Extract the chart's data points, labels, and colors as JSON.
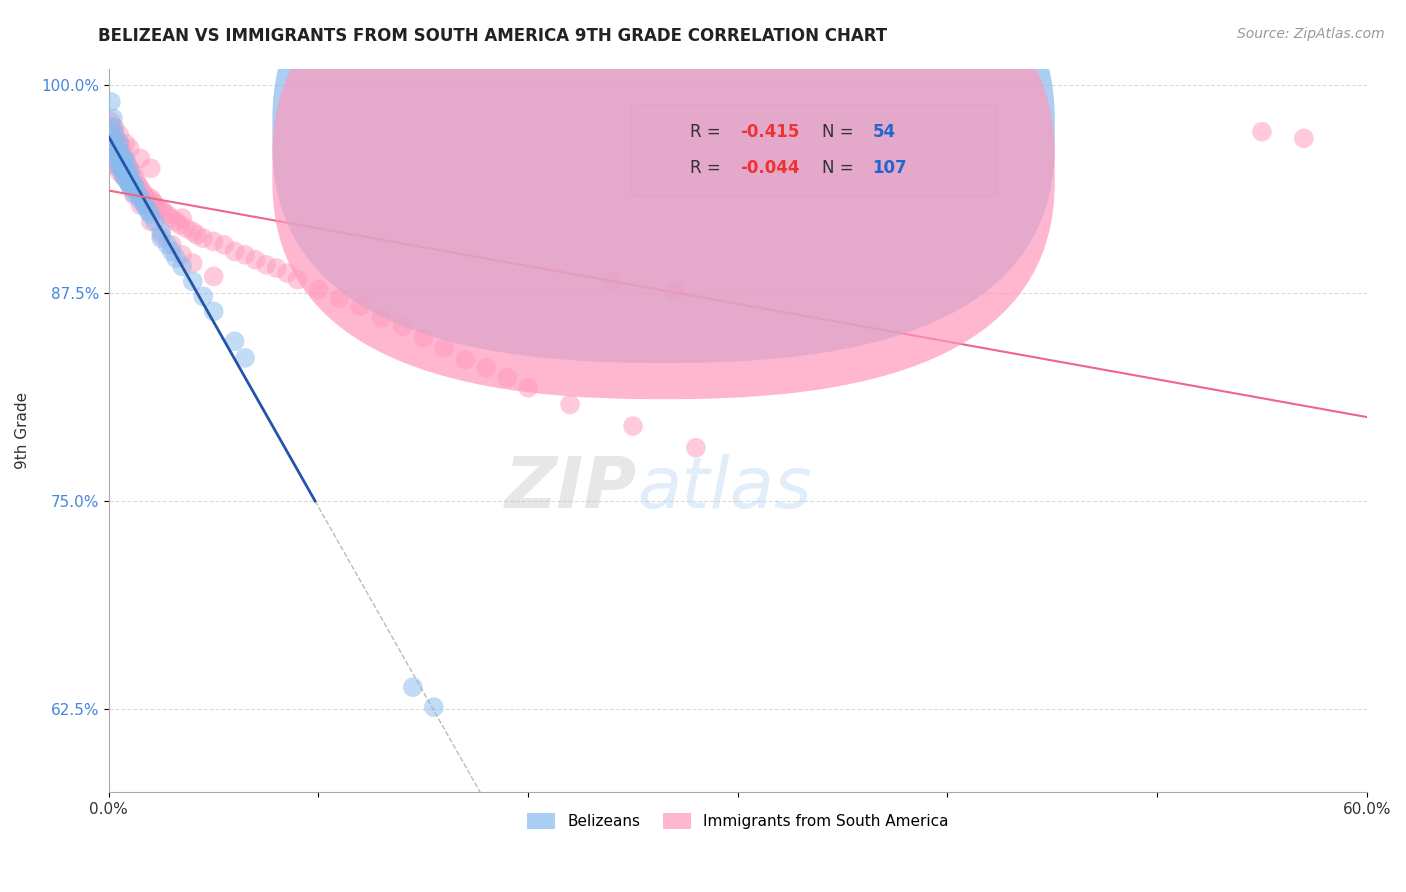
{
  "title": "BELIZEAN VS IMMIGRANTS FROM SOUTH AMERICA 9TH GRADE CORRELATION CHART",
  "source_text": "Source: ZipAtlas.com",
  "xlabel_blue": "Belizeans",
  "xlabel_pink": "Immigrants from South America",
  "ylabel": "9th Grade",
  "xlim": [
    0.0,
    0.6
  ],
  "ylim": [
    0.575,
    1.01
  ],
  "xticks": [
    0.0,
    0.1,
    0.2,
    0.3,
    0.4,
    0.5,
    0.6
  ],
  "xticklabels": [
    "0.0%",
    "",
    "",
    "",
    "",
    "",
    "60.0%"
  ],
  "yticks": [
    0.625,
    0.75,
    0.875,
    1.0
  ],
  "yticklabels": [
    "62.5%",
    "75.0%",
    "87.5%",
    "100.0%"
  ],
  "r_blue": -0.415,
  "n_blue": 54,
  "r_pink": -0.044,
  "n_pink": 107,
  "blue_color": "#88BBEE",
  "pink_color": "#FF99BB",
  "blue_line_color": "#2255AA",
  "pink_line_color": "#EE6688",
  "background_color": "#FFFFFF",
  "grid_color": "#CCCCCC",
  "watermark_zip": "ZIP",
  "watermark_atlas": "atlas",
  "blue_x": [
    0.001,
    0.002,
    0.002,
    0.003,
    0.003,
    0.003,
    0.004,
    0.004,
    0.005,
    0.005,
    0.005,
    0.005,
    0.006,
    0.006,
    0.006,
    0.007,
    0.007,
    0.007,
    0.008,
    0.008,
    0.008,
    0.009,
    0.009,
    0.01,
    0.01,
    0.01,
    0.011,
    0.011,
    0.012,
    0.012,
    0.013,
    0.014,
    0.015,
    0.016,
    0.017,
    0.018,
    0.019,
    0.02,
    0.022,
    0.025,
    0.025,
    0.028,
    0.03,
    0.032,
    0.035,
    0.04,
    0.045,
    0.05,
    0.06,
    0.065,
    0.001,
    0.002,
    0.145,
    0.155
  ],
  "blue_y": [
    0.97,
    0.975,
    0.965,
    0.97,
    0.96,
    0.955,
    0.965,
    0.96,
    0.965,
    0.96,
    0.955,
    0.95,
    0.958,
    0.955,
    0.95,
    0.955,
    0.95,
    0.945,
    0.955,
    0.95,
    0.945,
    0.948,
    0.942,
    0.948,
    0.944,
    0.94,
    0.942,
    0.938,
    0.94,
    0.935,
    0.938,
    0.934,
    0.932,
    0.93,
    0.928,
    0.926,
    0.924,
    0.922,
    0.918,
    0.912,
    0.908,
    0.904,
    0.9,
    0.896,
    0.891,
    0.882,
    0.873,
    0.864,
    0.846,
    0.836,
    0.99,
    0.98,
    0.638,
    0.626
  ],
  "pink_x": [
    0.001,
    0.001,
    0.002,
    0.002,
    0.002,
    0.003,
    0.003,
    0.003,
    0.003,
    0.004,
    0.004,
    0.004,
    0.005,
    0.005,
    0.005,
    0.005,
    0.006,
    0.006,
    0.006,
    0.007,
    0.007,
    0.007,
    0.008,
    0.008,
    0.008,
    0.009,
    0.009,
    0.01,
    0.01,
    0.01,
    0.011,
    0.012,
    0.012,
    0.013,
    0.014,
    0.015,
    0.016,
    0.017,
    0.018,
    0.019,
    0.02,
    0.02,
    0.021,
    0.022,
    0.023,
    0.025,
    0.026,
    0.028,
    0.03,
    0.032,
    0.034,
    0.035,
    0.037,
    0.04,
    0.042,
    0.045,
    0.05,
    0.055,
    0.06,
    0.065,
    0.07,
    0.075,
    0.08,
    0.085,
    0.09,
    0.1,
    0.11,
    0.12,
    0.13,
    0.14,
    0.15,
    0.16,
    0.17,
    0.18,
    0.19,
    0.2,
    0.22,
    0.25,
    0.28,
    0.002,
    0.003,
    0.004,
    0.005,
    0.006,
    0.007,
    0.008,
    0.009,
    0.01,
    0.012,
    0.015,
    0.02,
    0.025,
    0.03,
    0.035,
    0.04,
    0.05,
    0.55,
    0.57,
    0.001,
    0.003,
    0.005,
    0.008,
    0.01,
    0.015,
    0.02,
    0.24,
    0.27
  ],
  "pink_y": [
    0.975,
    0.965,
    0.972,
    0.968,
    0.96,
    0.968,
    0.964,
    0.958,
    0.952,
    0.965,
    0.96,
    0.955,
    0.965,
    0.96,
    0.955,
    0.948,
    0.962,
    0.956,
    0.95,
    0.958,
    0.952,
    0.946,
    0.955,
    0.95,
    0.944,
    0.952,
    0.946,
    0.95,
    0.945,
    0.94,
    0.948,
    0.945,
    0.94,
    0.943,
    0.94,
    0.938,
    0.936,
    0.934,
    0.932,
    0.93,
    0.932,
    0.928,
    0.93,
    0.928,
    0.926,
    0.925,
    0.924,
    0.922,
    0.92,
    0.918,
    0.916,
    0.92,
    0.914,
    0.912,
    0.91,
    0.908,
    0.906,
    0.904,
    0.9,
    0.898,
    0.895,
    0.892,
    0.89,
    0.887,
    0.883,
    0.877,
    0.872,
    0.867,
    0.86,
    0.855,
    0.848,
    0.842,
    0.835,
    0.83,
    0.824,
    0.818,
    0.808,
    0.795,
    0.782,
    0.97,
    0.966,
    0.962,
    0.958,
    0.955,
    0.952,
    0.948,
    0.944,
    0.94,
    0.934,
    0.928,
    0.918,
    0.91,
    0.904,
    0.898,
    0.893,
    0.885,
    0.972,
    0.968,
    0.978,
    0.974,
    0.97,
    0.965,
    0.962,
    0.956,
    0.95,
    0.882,
    0.876
  ]
}
